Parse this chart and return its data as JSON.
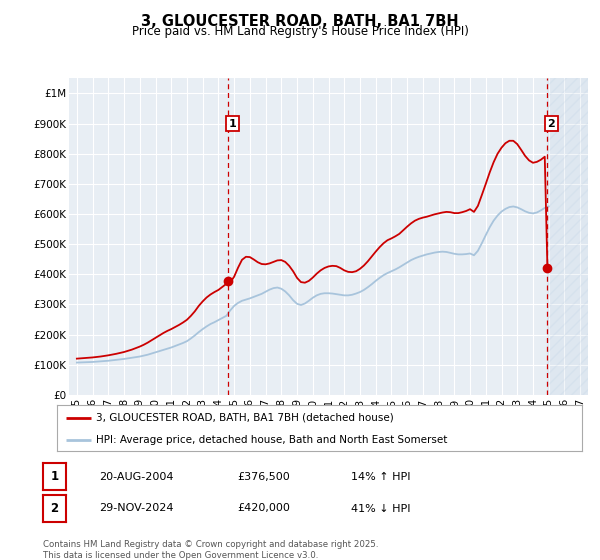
{
  "title": "3, GLOUCESTER ROAD, BATH, BA1 7BH",
  "subtitle": "Price paid vs. HM Land Registry's House Price Index (HPI)",
  "ylim": [
    0,
    1050000
  ],
  "xlim": [
    1994.5,
    2027.5
  ],
  "yticks": [
    0,
    100000,
    200000,
    300000,
    400000,
    500000,
    600000,
    700000,
    800000,
    900000,
    1000000
  ],
  "ytick_labels": [
    "£0",
    "£100K",
    "£200K",
    "£300K",
    "£400K",
    "£500K",
    "£600K",
    "£700K",
    "£800K",
    "£900K",
    "£1M"
  ],
  "xticks": [
    1995,
    1996,
    1997,
    1998,
    1999,
    2000,
    2001,
    2002,
    2003,
    2004,
    2005,
    2006,
    2007,
    2008,
    2009,
    2010,
    2011,
    2012,
    2013,
    2014,
    2015,
    2016,
    2017,
    2018,
    2019,
    2020,
    2021,
    2022,
    2023,
    2024,
    2025,
    2026,
    2027
  ],
  "hpi_color": "#a8c4dc",
  "price_color": "#cc0000",
  "bg_color": "#e8eef4",
  "grid_color": "#ffffff",
  "sale1_x": 2004.64,
  "sale1_y": 376500,
  "sale2_x": 2024.92,
  "sale2_y": 420000,
  "legend_label_price": "3, GLOUCESTER ROAD, BATH, BA1 7BH (detached house)",
  "legend_label_hpi": "HPI: Average price, detached house, Bath and North East Somerset",
  "annotation1_date": "20-AUG-2004",
  "annotation1_price": "£376,500",
  "annotation1_hpi": "14% ↑ HPI",
  "annotation2_date": "29-NOV-2024",
  "annotation2_price": "£420,000",
  "annotation2_hpi": "41% ↓ HPI",
  "footnote": "Contains HM Land Registry data © Crown copyright and database right 2025.\nThis data is licensed under the Open Government Licence v3.0.",
  "hpi_data": [
    [
      1995.0,
      107000
    ],
    [
      1995.25,
      107500
    ],
    [
      1995.5,
      108000
    ],
    [
      1995.75,
      108500
    ],
    [
      1996.0,
      109000
    ],
    [
      1996.25,
      110000
    ],
    [
      1996.5,
      111000
    ],
    [
      1996.75,
      112000
    ],
    [
      1997.0,
      113000
    ],
    [
      1997.25,
      114500
    ],
    [
      1997.5,
      116000
    ],
    [
      1997.75,
      117500
    ],
    [
      1998.0,
      119000
    ],
    [
      1998.25,
      121000
    ],
    [
      1998.5,
      123000
    ],
    [
      1998.75,
      125000
    ],
    [
      1999.0,
      127000
    ],
    [
      1999.25,
      130000
    ],
    [
      1999.5,
      133000
    ],
    [
      1999.75,
      137000
    ],
    [
      2000.0,
      141000
    ],
    [
      2000.25,
      145000
    ],
    [
      2000.5,
      149000
    ],
    [
      2000.75,
      153000
    ],
    [
      2001.0,
      157000
    ],
    [
      2001.25,
      162000
    ],
    [
      2001.5,
      167000
    ],
    [
      2001.75,
      172000
    ],
    [
      2002.0,
      178000
    ],
    [
      2002.25,
      187000
    ],
    [
      2002.5,
      197000
    ],
    [
      2002.75,
      208000
    ],
    [
      2003.0,
      218000
    ],
    [
      2003.25,
      227000
    ],
    [
      2003.5,
      235000
    ],
    [
      2003.75,
      241000
    ],
    [
      2004.0,
      248000
    ],
    [
      2004.25,
      255000
    ],
    [
      2004.5,
      262000
    ],
    [
      2004.75,
      280000
    ],
    [
      2005.0,
      295000
    ],
    [
      2005.25,
      305000
    ],
    [
      2005.5,
      312000
    ],
    [
      2005.75,
      316000
    ],
    [
      2006.0,
      320000
    ],
    [
      2006.25,
      325000
    ],
    [
      2006.5,
      330000
    ],
    [
      2006.75,
      335000
    ],
    [
      2007.0,
      342000
    ],
    [
      2007.25,
      349000
    ],
    [
      2007.5,
      354000
    ],
    [
      2007.75,
      356000
    ],
    [
      2008.0,
      352000
    ],
    [
      2008.25,
      343000
    ],
    [
      2008.5,
      330000
    ],
    [
      2008.75,
      314000
    ],
    [
      2009.0,
      302000
    ],
    [
      2009.25,
      298000
    ],
    [
      2009.5,
      303000
    ],
    [
      2009.75,
      312000
    ],
    [
      2010.0,
      322000
    ],
    [
      2010.25,
      330000
    ],
    [
      2010.5,
      335000
    ],
    [
      2010.75,
      337000
    ],
    [
      2011.0,
      337000
    ],
    [
      2011.25,
      336000
    ],
    [
      2011.5,
      334000
    ],
    [
      2011.75,
      332000
    ],
    [
      2012.0,
      330000
    ],
    [
      2012.25,
      330000
    ],
    [
      2012.5,
      332000
    ],
    [
      2012.75,
      336000
    ],
    [
      2013.0,
      341000
    ],
    [
      2013.25,
      348000
    ],
    [
      2013.5,
      357000
    ],
    [
      2013.75,
      367000
    ],
    [
      2014.0,
      378000
    ],
    [
      2014.25,
      388000
    ],
    [
      2014.5,
      397000
    ],
    [
      2014.75,
      404000
    ],
    [
      2015.0,
      410000
    ],
    [
      2015.25,
      416000
    ],
    [
      2015.5,
      423000
    ],
    [
      2015.75,
      431000
    ],
    [
      2016.0,
      439000
    ],
    [
      2016.25,
      447000
    ],
    [
      2016.5,
      453000
    ],
    [
      2016.75,
      458000
    ],
    [
      2017.0,
      462000
    ],
    [
      2017.25,
      466000
    ],
    [
      2017.5,
      469000
    ],
    [
      2017.75,
      472000
    ],
    [
      2018.0,
      474000
    ],
    [
      2018.25,
      475000
    ],
    [
      2018.5,
      474000
    ],
    [
      2018.75,
      471000
    ],
    [
      2019.0,
      468000
    ],
    [
      2019.25,
      466000
    ],
    [
      2019.5,
      466000
    ],
    [
      2019.75,
      467000
    ],
    [
      2020.0,
      469000
    ],
    [
      2020.25,
      463000
    ],
    [
      2020.5,
      478000
    ],
    [
      2020.75,
      503000
    ],
    [
      2021.0,
      530000
    ],
    [
      2021.25,
      556000
    ],
    [
      2021.5,
      578000
    ],
    [
      2021.75,
      595000
    ],
    [
      2022.0,
      608000
    ],
    [
      2022.25,
      617000
    ],
    [
      2022.5,
      623000
    ],
    [
      2022.75,
      625000
    ],
    [
      2023.0,
      622000
    ],
    [
      2023.25,
      616000
    ],
    [
      2023.5,
      609000
    ],
    [
      2023.75,
      604000
    ],
    [
      2024.0,
      602000
    ],
    [
      2024.25,
      605000
    ],
    [
      2024.5,
      612000
    ],
    [
      2024.75,
      620000
    ],
    [
      2025.0,
      625000
    ]
  ],
  "price_data": [
    [
      1995.0,
      120000
    ],
    [
      1995.25,
      121000
    ],
    [
      1995.5,
      122000
    ],
    [
      1995.75,
      123000
    ],
    [
      1996.0,
      124000
    ],
    [
      1996.25,
      125500
    ],
    [
      1996.5,
      127000
    ],
    [
      1996.75,
      129000
    ],
    [
      1997.0,
      131000
    ],
    [
      1997.25,
      133500
    ],
    [
      1997.5,
      136000
    ],
    [
      1997.75,
      139000
    ],
    [
      1998.0,
      142000
    ],
    [
      1998.25,
      146000
    ],
    [
      1998.5,
      150000
    ],
    [
      1998.75,
      155000
    ],
    [
      1999.0,
      160000
    ],
    [
      1999.25,
      166000
    ],
    [
      1999.5,
      173000
    ],
    [
      1999.75,
      181000
    ],
    [
      2000.0,
      189000
    ],
    [
      2000.25,
      197000
    ],
    [
      2000.5,
      205000
    ],
    [
      2000.75,
      212000
    ],
    [
      2001.0,
      218000
    ],
    [
      2001.25,
      225000
    ],
    [
      2001.5,
      232000
    ],
    [
      2001.75,
      240000
    ],
    [
      2002.0,
      249000
    ],
    [
      2002.25,
      262000
    ],
    [
      2002.5,
      277000
    ],
    [
      2002.75,
      295000
    ],
    [
      2003.0,
      310000
    ],
    [
      2003.25,
      323000
    ],
    [
      2003.5,
      333000
    ],
    [
      2003.75,
      341000
    ],
    [
      2004.0,
      348000
    ],
    [
      2004.25,
      358000
    ],
    [
      2004.5,
      368000
    ],
    [
      2004.64,
      376500
    ],
    [
      2004.75,
      373000
    ],
    [
      2005.0,
      392000
    ],
    [
      2005.25,
      422000
    ],
    [
      2005.5,
      448000
    ],
    [
      2005.75,
      458000
    ],
    [
      2006.0,
      457000
    ],
    [
      2006.25,
      449000
    ],
    [
      2006.5,
      440000
    ],
    [
      2006.75,
      434000
    ],
    [
      2007.0,
      433000
    ],
    [
      2007.25,
      436000
    ],
    [
      2007.5,
      441000
    ],
    [
      2007.75,
      446000
    ],
    [
      2008.0,
      447000
    ],
    [
      2008.25,
      441000
    ],
    [
      2008.5,
      428000
    ],
    [
      2008.75,
      410000
    ],
    [
      2009.0,
      388000
    ],
    [
      2009.25,
      374000
    ],
    [
      2009.5,
      372000
    ],
    [
      2009.75,
      378000
    ],
    [
      2010.0,
      389000
    ],
    [
      2010.25,
      402000
    ],
    [
      2010.5,
      413000
    ],
    [
      2010.75,
      421000
    ],
    [
      2011.0,
      426000
    ],
    [
      2011.25,
      428000
    ],
    [
      2011.5,
      427000
    ],
    [
      2011.75,
      421000
    ],
    [
      2012.0,
      413000
    ],
    [
      2012.25,
      408000
    ],
    [
      2012.5,
      407000
    ],
    [
      2012.75,
      410000
    ],
    [
      2013.0,
      418000
    ],
    [
      2013.25,
      429000
    ],
    [
      2013.5,
      443000
    ],
    [
      2013.75,
      459000
    ],
    [
      2014.0,
      475000
    ],
    [
      2014.25,
      490000
    ],
    [
      2014.5,
      503000
    ],
    [
      2014.75,
      513000
    ],
    [
      2015.0,
      519000
    ],
    [
      2015.25,
      526000
    ],
    [
      2015.5,
      534000
    ],
    [
      2015.75,
      546000
    ],
    [
      2016.0,
      558000
    ],
    [
      2016.25,
      569000
    ],
    [
      2016.5,
      578000
    ],
    [
      2016.75,
      584000
    ],
    [
      2017.0,
      588000
    ],
    [
      2017.25,
      591000
    ],
    [
      2017.5,
      595000
    ],
    [
      2017.75,
      599000
    ],
    [
      2018.0,
      602000
    ],
    [
      2018.25,
      605000
    ],
    [
      2018.5,
      607000
    ],
    [
      2018.75,
      606000
    ],
    [
      2019.0,
      603000
    ],
    [
      2019.25,
      603000
    ],
    [
      2019.5,
      606000
    ],
    [
      2019.75,
      610000
    ],
    [
      2020.0,
      616000
    ],
    [
      2020.25,
      607000
    ],
    [
      2020.5,
      627000
    ],
    [
      2020.75,
      663000
    ],
    [
      2021.0,
      700000
    ],
    [
      2021.25,
      738000
    ],
    [
      2021.5,
      772000
    ],
    [
      2021.75,
      800000
    ],
    [
      2022.0,
      820000
    ],
    [
      2022.25,
      835000
    ],
    [
      2022.5,
      843000
    ],
    [
      2022.75,
      843000
    ],
    [
      2023.0,
      832000
    ],
    [
      2023.25,
      813000
    ],
    [
      2023.5,
      793000
    ],
    [
      2023.75,
      778000
    ],
    [
      2024.0,
      770000
    ],
    [
      2024.25,
      773000
    ],
    [
      2024.5,
      780000
    ],
    [
      2024.75,
      790000
    ],
    [
      2024.92,
      420000
    ]
  ]
}
